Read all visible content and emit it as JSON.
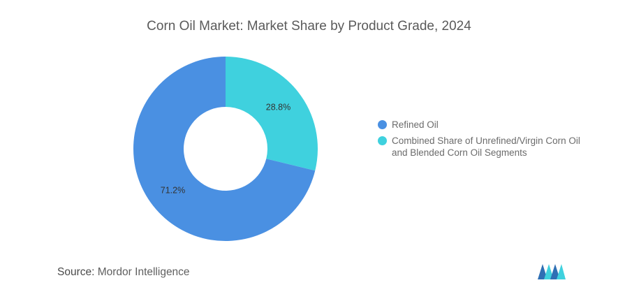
{
  "page": {
    "title": "Corn Oil Market: Market Share by Product Grade, 2024",
    "source_label": "Source:",
    "source_value": "Mordor Intelligence",
    "logo_name": "mordor-intelligence-logo"
  },
  "chart_data": {
    "type": "pie",
    "title": "Corn Oil Market: Market Share by Product Grade, 2024",
    "donut": true,
    "legend_position": "right",
    "series": [
      {
        "name": "Refined Oil",
        "value": 71.2,
        "label": "71.2%",
        "color": "#4a90e2"
      },
      {
        "name": "Combined Share of Unrefined/Virgin Corn Oil and Blended Corn Oil Segments",
        "value": 28.8,
        "label": "28.8%",
        "color": "#3fd1de"
      }
    ]
  }
}
